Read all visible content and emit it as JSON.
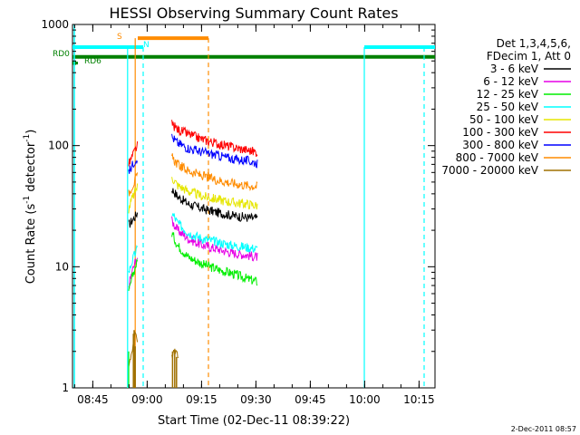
{
  "chart_data": {
    "type": "line",
    "title": "HESSI Observing Summary Count Rates",
    "xlabel": "Start Time (02-Dec-11 08:39:22)",
    "ylabel_main": "Count Rate (s",
    "ylabel_sup1": "-1",
    "ylabel_mid": " detector",
    "ylabel_sup2": "-1",
    "ylabel_end": ")",
    "yscale": "log",
    "ylim": [
      1,
      1000
    ],
    "xlim_min": [
      0,
      100
    ],
    "x_ticks": [
      {
        "label": "08:45",
        "min": 5.6
      },
      {
        "label": "09:00",
        "min": 20.6
      },
      {
        "label": "09:15",
        "min": 35.6
      },
      {
        "label": "09:30",
        "min": 50.6
      },
      {
        "label": "09:45",
        "min": 65.6
      },
      {
        "label": "10:00",
        "min": 80.6
      },
      {
        "label": "10:15",
        "min": 95.6
      }
    ],
    "y_ticks": [
      {
        "label": "1",
        "value": 1
      },
      {
        "label": "10",
        "value": 10
      },
      {
        "label": "100",
        "value": 100
      },
      {
        "label": "1000",
        "value": 1000
      }
    ],
    "legend": {
      "header1": "Det 1,3,4,5,6,",
      "header2": "FDecim 1, Att 0",
      "placement": "right"
    },
    "series": [
      {
        "name": "3 - 6 keV",
        "color": "#000000",
        "seg1": [
          [
            15.5,
            22
          ],
          [
            16.4,
            24
          ],
          [
            17.3,
            26
          ],
          [
            17.9,
            28
          ]
        ],
        "seg2": [
          [
            27.4,
            44
          ],
          [
            29,
            38
          ],
          [
            32,
            33
          ],
          [
            36,
            30
          ],
          [
            40,
            28
          ],
          [
            44,
            26.5
          ],
          [
            48,
            25.5
          ],
          [
            51,
            25
          ]
        ]
      },
      {
        "name": "6 - 12 keV",
        "color": "#e600e6",
        "seg1": [
          [
            15.5,
            7
          ],
          [
            16.4,
            9
          ],
          [
            17.3,
            11
          ],
          [
            17.9,
            12
          ]
        ],
        "seg2": [
          [
            27.4,
            24
          ],
          [
            29,
            20
          ],
          [
            32,
            17
          ],
          [
            36,
            15
          ],
          [
            40,
            14
          ],
          [
            44,
            13
          ],
          [
            48,
            12.5
          ],
          [
            51,
            12
          ]
        ]
      },
      {
        "name": "12 - 25 keV",
        "color": "#00ee00",
        "seg1": [
          [
            15.5,
            6
          ],
          [
            16.4,
            8
          ],
          [
            17.3,
            10
          ],
          [
            17.9,
            11
          ]
        ],
        "seg2": [
          [
            27.4,
            19
          ],
          [
            29,
            15
          ],
          [
            32,
            12
          ],
          [
            36,
            10.5
          ],
          [
            40,
            9.5
          ],
          [
            44,
            8.8
          ],
          [
            48,
            8
          ],
          [
            51,
            7.5
          ]
        ]
      },
      {
        "name": "25 - 50 keV",
        "color": "#00ffff",
        "seg1": [
          [
            15.5,
            9
          ],
          [
            16.4,
            11
          ],
          [
            17.3,
            13
          ],
          [
            17.9,
            14
          ]
        ],
        "seg2": [
          [
            27.4,
            28
          ],
          [
            29,
            23
          ],
          [
            32,
            19
          ],
          [
            36,
            17
          ],
          [
            40,
            16
          ],
          [
            44,
            15
          ],
          [
            48,
            14.5
          ],
          [
            51,
            14
          ]
        ]
      },
      {
        "name": "50 - 100 keV",
        "color": "#e6e600",
        "seg1": [
          [
            15.5,
            30
          ],
          [
            16.4,
            36
          ],
          [
            17.3,
            42
          ],
          [
            17.9,
            46
          ]
        ],
        "seg2": [
          [
            27.4,
            55
          ],
          [
            29,
            47
          ],
          [
            32,
            42
          ],
          [
            36,
            38
          ],
          [
            40,
            36
          ],
          [
            44,
            34
          ],
          [
            48,
            33
          ],
          [
            51,
            32
          ]
        ]
      },
      {
        "name": "100 - 300 keV",
        "color": "#ff0000",
        "seg1": [
          [
            15.5,
            70
          ],
          [
            16.4,
            80
          ],
          [
            17.3,
            92
          ],
          [
            17.9,
            100
          ]
        ],
        "seg2": [
          [
            27.4,
            150
          ],
          [
            29,
            136
          ],
          [
            32,
            124
          ],
          [
            36,
            112
          ],
          [
            40,
            104
          ],
          [
            44,
            97
          ],
          [
            48,
            92
          ],
          [
            51,
            88
          ]
        ]
      },
      {
        "name": "300 - 800 keV",
        "color": "#0000ff",
        "seg1": [
          [
            15.5,
            60
          ],
          [
            16.4,
            68
          ],
          [
            17.3,
            76
          ],
          [
            17.9,
            80
          ]
        ],
        "seg2": [
          [
            27.4,
            118
          ],
          [
            29,
            105
          ],
          [
            32,
            95
          ],
          [
            36,
            88
          ],
          [
            40,
            83
          ],
          [
            44,
            78
          ],
          [
            48,
            75
          ],
          [
            51,
            72
          ]
        ]
      },
      {
        "name": "800 - 7000 keV",
        "color": "#ff8c00",
        "seg1": [
          [
            15.5,
            40
          ],
          [
            16.4,
            46
          ],
          [
            17.3,
            52
          ],
          [
            17.9,
            56
          ]
        ],
        "seg2": [
          [
            27.4,
            80
          ],
          [
            29,
            70
          ],
          [
            32,
            62
          ],
          [
            36,
            56
          ],
          [
            40,
            52
          ],
          [
            44,
            49
          ],
          [
            48,
            47
          ],
          [
            51,
            46
          ]
        ]
      },
      {
        "name": "7000 - 20000 keV",
        "color": "#a07000",
        "seg1": [
          [
            15.5,
            1.5
          ],
          [
            16.4,
            2
          ],
          [
            17.3,
            3
          ],
          [
            17.9,
            2.5
          ]
        ],
        "seg2": [
          [
            27.4,
            1.8
          ],
          [
            28,
            2
          ],
          [
            28.6,
            2
          ],
          [
            29.2,
            1.8
          ]
        ]
      }
    ],
    "flags": [
      {
        "label": "S",
        "color": "#ff8c00",
        "y": 770,
        "x0": 18,
        "x1": 37.5
      },
      {
        "label": "N",
        "color": "#00ffff",
        "y": 650,
        "x0": 0,
        "x1": 19.5
      },
      {
        "label": "RD0",
        "color": "#008000",
        "y": 540,
        "x0": 0,
        "x1": 100
      },
      {
        "label": "RD6",
        "color": "#008000",
        "y": 480,
        "x0": 0,
        "x1": 1
      }
    ],
    "vlines": [
      {
        "x": 15.2,
        "color": "#00ffff",
        "dash": false
      },
      {
        "x": 19.5,
        "color": "#00ffff",
        "dash": true
      },
      {
        "x": 17.3,
        "color": "#ff8c00",
        "dash": false
      },
      {
        "x": 37.5,
        "color": "#ff8c00",
        "dash": true
      },
      {
        "x": 80.5,
        "color": "#00ffff",
        "dash": false
      },
      {
        "x": 97,
        "color": "#00ffff",
        "dash": true
      }
    ],
    "grid": false
  },
  "footer": {
    "timestamp": "2-Dec-2011 08:57"
  }
}
